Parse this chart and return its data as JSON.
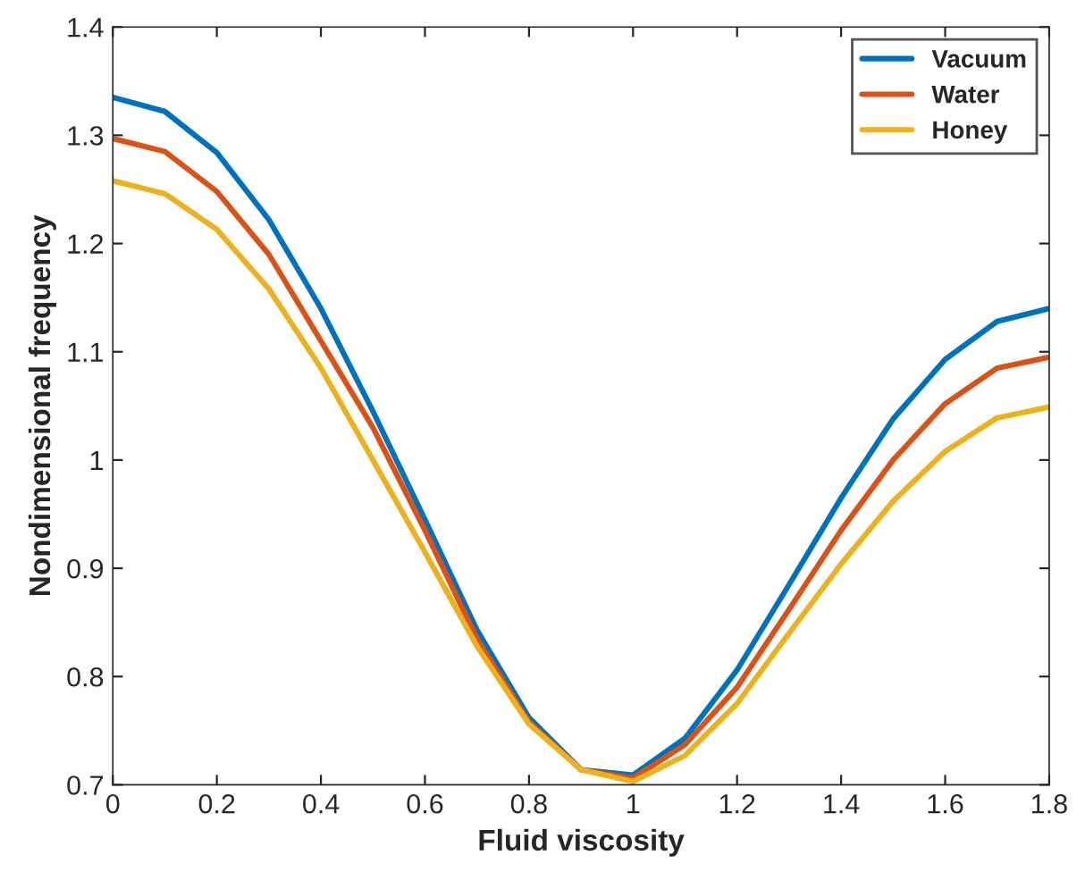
{
  "chart_data": {
    "type": "line",
    "xlabel": "Fluid viscosity",
    "ylabel": "Nondimensional frequency",
    "x": [
      0,
      0.1,
      0.2,
      0.3,
      0.4,
      0.5,
      0.6,
      0.7,
      0.8,
      0.9,
      1.0,
      1.1,
      1.2,
      1.3,
      1.4,
      1.5,
      1.6,
      1.7,
      1.8
    ],
    "series": [
      {
        "name": "Vacuum",
        "color": "#0072bd",
        "values": [
          1.335,
          1.322,
          1.284,
          1.222,
          1.14,
          1.045,
          0.945,
          0.843,
          0.762,
          0.714,
          0.709,
          0.743,
          0.806,
          0.885,
          0.965,
          1.038,
          1.093,
          1.128,
          1.14
        ]
      },
      {
        "name": "Water",
        "color": "#d95319",
        "values": [
          1.297,
          1.285,
          1.248,
          1.19,
          1.11,
          1.03,
          0.935,
          0.835,
          0.758,
          0.714,
          0.706,
          0.737,
          0.79,
          0.862,
          0.935,
          1.0,
          1.052,
          1.085,
          1.095
        ]
      },
      {
        "name": "Honey",
        "color": "#edb120",
        "values": [
          1.258,
          1.246,
          1.213,
          1.158,
          1.085,
          1.0,
          0.915,
          0.828,
          0.756,
          0.714,
          0.703,
          0.727,
          0.775,
          0.84,
          0.904,
          0.962,
          1.008,
          1.039,
          1.049
        ]
      }
    ],
    "xlim": [
      0,
      1.8
    ],
    "ylim": [
      0.7,
      1.4
    ],
    "xticks": [
      0,
      0.2,
      0.4,
      0.6,
      0.8,
      1,
      1.2,
      1.4,
      1.6,
      1.8
    ],
    "yticks": [
      0.7,
      0.8,
      0.9,
      1,
      1.1,
      1.2,
      1.3,
      1.4
    ],
    "grid": false,
    "legend": "top right",
    "marker": "none",
    "line_style": "solid"
  }
}
